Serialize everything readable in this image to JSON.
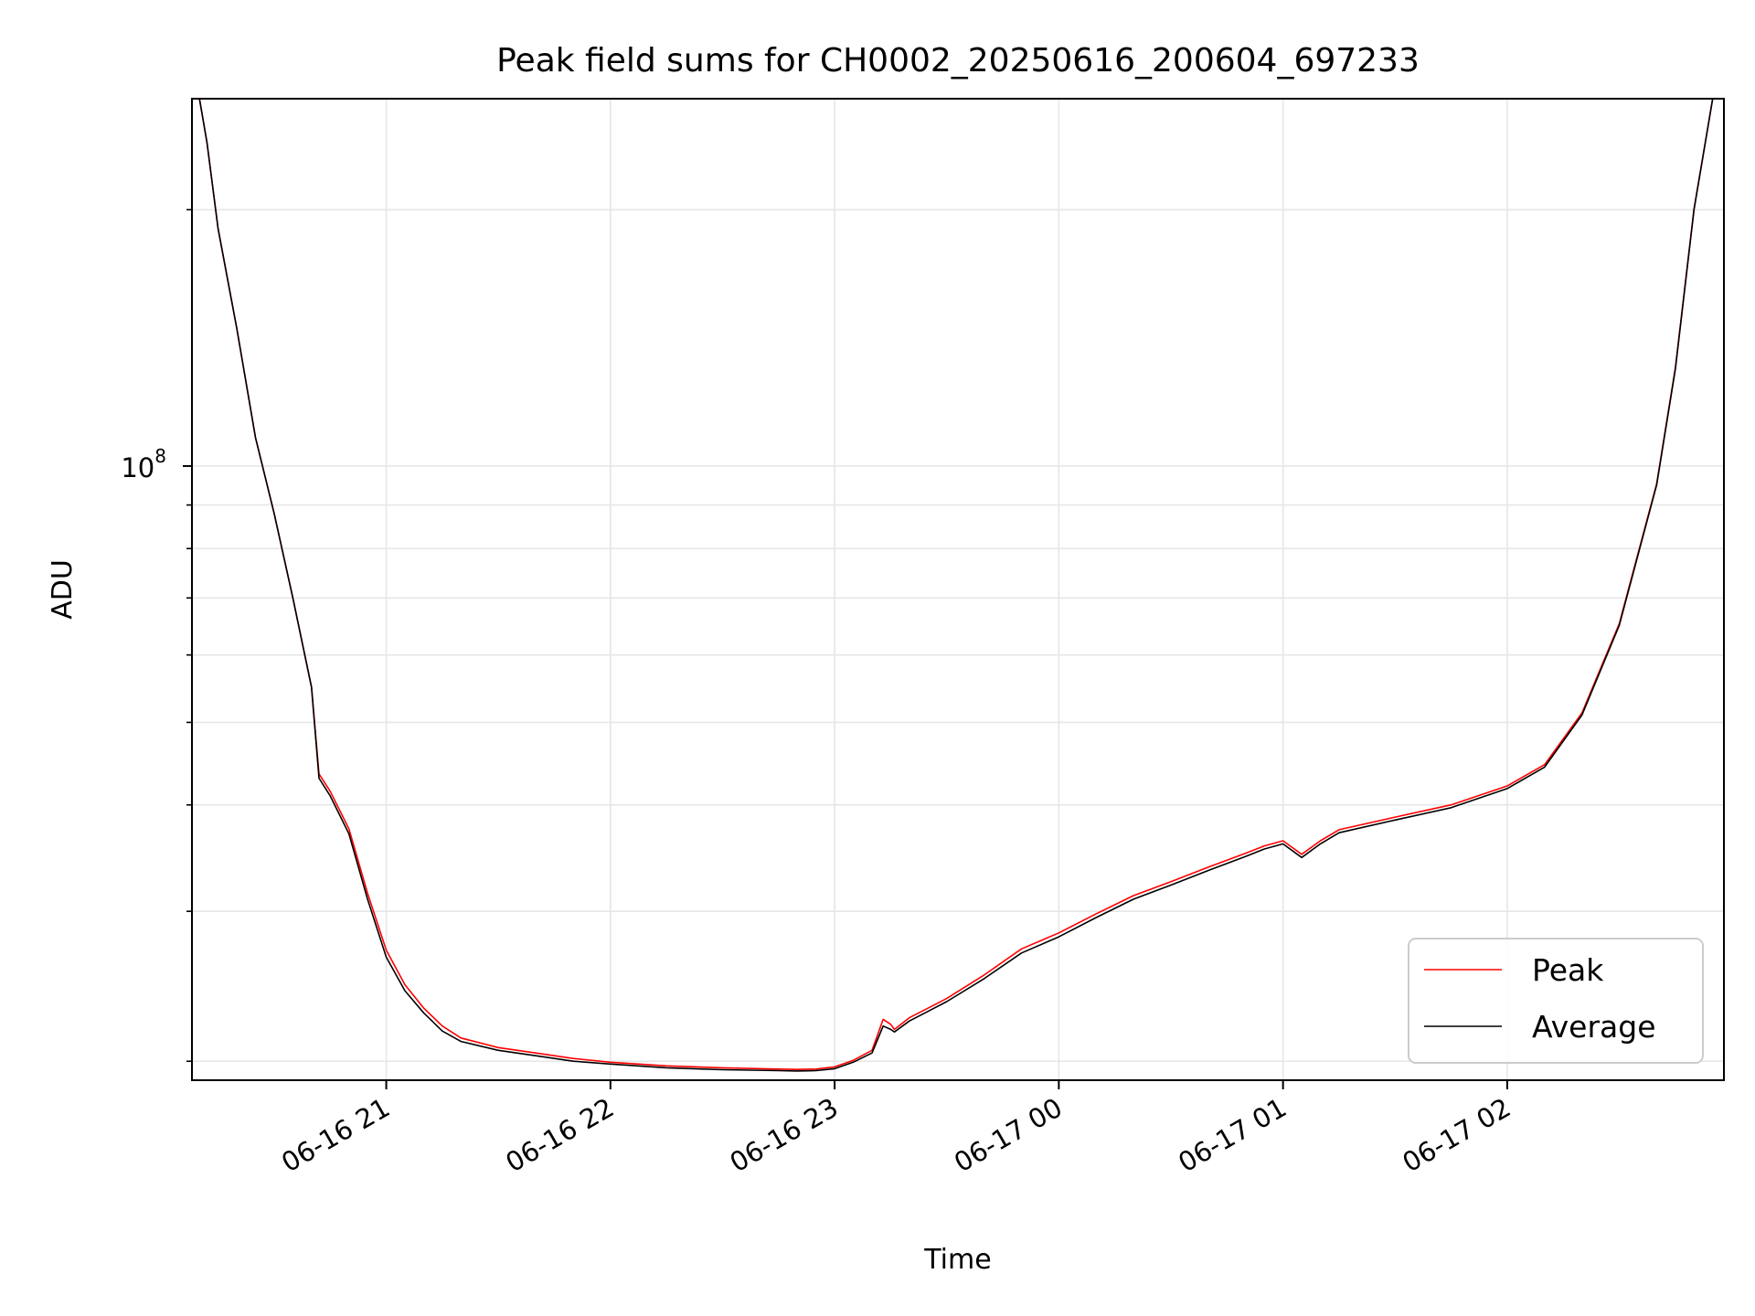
{
  "chart_data": {
    "type": "line",
    "title": "Peak field sums for CH0002_20250616_200604_697233",
    "xlabel": "Time",
    "ylabel": "ADU",
    "y_scale": "log",
    "ylim": [
      19000000.0,
      270000000.0
    ],
    "xlim": [
      "2025-06-16 20:08",
      "2025-06-17 02:58"
    ],
    "grid": true,
    "x_ticks": [
      {
        "t": "2025-06-16 21:00",
        "label": "06-16 21"
      },
      {
        "t": "2025-06-16 22:00",
        "label": "06-16 22"
      },
      {
        "t": "2025-06-16 23:00",
        "label": "06-16 23"
      },
      {
        "t": "2025-06-17 00:00",
        "label": "06-17 00"
      },
      {
        "t": "2025-06-17 01:00",
        "label": "06-17 01"
      },
      {
        "t": "2025-06-17 02:00",
        "label": "06-17 02"
      }
    ],
    "y_major_ticks": [
      {
        "value": 100000000,
        "base": "10",
        "exp": "8"
      }
    ],
    "y_minor_ticks": [
      20000000,
      30000000,
      40000000,
      50000000,
      60000000,
      70000000,
      80000000,
      90000000,
      200000000
    ],
    "legend": {
      "position": "lower-right",
      "entries": [
        {
          "name": "Peak",
          "color": "#ff0000"
        },
        {
          "name": "Average",
          "color": "#000000"
        }
      ]
    },
    "series": [
      {
        "name": "Average",
        "color": "#000000",
        "x": [
          "2025-06-16 20:10",
          "2025-06-16 20:12",
          "2025-06-16 20:15",
          "2025-06-16 20:20",
          "2025-06-16 20:25",
          "2025-06-16 20:30",
          "2025-06-16 20:35",
          "2025-06-16 20:40",
          "2025-06-16 20:42",
          "2025-06-16 20:45",
          "2025-06-16 20:50",
          "2025-06-16 20:55",
          "2025-06-16 21:00",
          "2025-06-16 21:05",
          "2025-06-16 21:10",
          "2025-06-16 21:15",
          "2025-06-16 21:20",
          "2025-06-16 21:30",
          "2025-06-16 21:40",
          "2025-06-16 21:50",
          "2025-06-16 22:00",
          "2025-06-16 22:15",
          "2025-06-16 22:30",
          "2025-06-16 22:45",
          "2025-06-16 22:50",
          "2025-06-16 22:55",
          "2025-06-16 23:00",
          "2025-06-16 23:05",
          "2025-06-16 23:10",
          "2025-06-16 23:13",
          "2025-06-16 23:15",
          "2025-06-16 23:16",
          "2025-06-16 23:20",
          "2025-06-16 23:30",
          "2025-06-16 23:40",
          "2025-06-16 23:50",
          "2025-06-17 00:00",
          "2025-06-17 00:10",
          "2025-06-17 00:20",
          "2025-06-17 00:30",
          "2025-06-17 00:40",
          "2025-06-17 00:50",
          "2025-06-17 00:55",
          "2025-06-17 01:00",
          "2025-06-17 01:05",
          "2025-06-17 01:10",
          "2025-06-17 01:15",
          "2025-06-17 01:30",
          "2025-06-17 01:45",
          "2025-06-17 02:00",
          "2025-06-17 02:10",
          "2025-06-17 02:20",
          "2025-06-17 02:30",
          "2025-06-17 02:40",
          "2025-06-17 02:45",
          "2025-06-17 02:50",
          "2025-06-17 02:55"
        ],
        "values": [
          270000000,
          240000000,
          190000000,
          145000000,
          108000000,
          88000000,
          70000000,
          55000000,
          43000000,
          41000000,
          37000000,
          31000000,
          26500000,
          24200000,
          22800000,
          21700000,
          21100000,
          20600000,
          20300000,
          20000000,
          19850000,
          19650000,
          19550000,
          19500000,
          19480000,
          19500000,
          19600000,
          19950000,
          20450000,
          22000000,
          21800000,
          21650000,
          22300000,
          23500000,
          25000000,
          26800000,
          28000000,
          29500000,
          31000000,
          32200000,
          33500000,
          34800000,
          35500000,
          36000000,
          34700000,
          36000000,
          37100000,
          38400000,
          39700000,
          41800000,
          44300000,
          51000000,
          65000000,
          95000000,
          130000000,
          200000000,
          270000000
        ]
      },
      {
        "name": "Peak",
        "color": "#ff0000",
        "x": [
          "2025-06-16 20:10",
          "2025-06-16 20:12",
          "2025-06-16 20:15",
          "2025-06-16 20:20",
          "2025-06-16 20:25",
          "2025-06-16 20:30",
          "2025-06-16 20:35",
          "2025-06-16 20:40",
          "2025-06-16 20:42",
          "2025-06-16 20:45",
          "2025-06-16 20:50",
          "2025-06-16 20:55",
          "2025-06-16 21:00",
          "2025-06-16 21:05",
          "2025-06-16 21:10",
          "2025-06-16 21:15",
          "2025-06-16 21:20",
          "2025-06-16 21:30",
          "2025-06-16 21:40",
          "2025-06-16 21:50",
          "2025-06-16 22:00",
          "2025-06-16 22:15",
          "2025-06-16 22:30",
          "2025-06-16 22:45",
          "2025-06-16 22:50",
          "2025-06-16 22:55",
          "2025-06-16 23:00",
          "2025-06-16 23:05",
          "2025-06-16 23:10",
          "2025-06-16 23:13",
          "2025-06-16 23:15",
          "2025-06-16 23:16",
          "2025-06-16 23:20",
          "2025-06-16 23:30",
          "2025-06-16 23:40",
          "2025-06-16 23:50",
          "2025-06-17 00:00",
          "2025-06-17 00:10",
          "2025-06-17 00:20",
          "2025-06-17 00:30",
          "2025-06-17 00:40",
          "2025-06-17 00:50",
          "2025-06-17 00:55",
          "2025-06-17 01:00",
          "2025-06-17 01:05",
          "2025-06-17 01:10",
          "2025-06-17 01:15",
          "2025-06-17 01:30",
          "2025-06-17 01:45",
          "2025-06-17 02:00",
          "2025-06-17 02:10",
          "2025-06-17 02:20",
          "2025-06-17 02:30",
          "2025-06-17 02:40",
          "2025-06-17 02:45",
          "2025-06-17 02:50",
          "2025-06-17 02:55"
        ],
        "values": [
          270000000,
          240000000,
          190000000,
          145000000,
          108000000,
          88000000,
          70000000,
          55000000,
          43500000,
          41500000,
          37500000,
          31500000,
          27000000,
          24600000,
          23100000,
          22000000,
          21300000,
          20750000,
          20450000,
          20150000,
          19950000,
          19750000,
          19650000,
          19580000,
          19560000,
          19580000,
          19700000,
          20050000,
          20600000,
          22400000,
          22100000,
          21800000,
          22500000,
          23700000,
          25250000,
          27100000,
          28300000,
          29800000,
          31300000,
          32500000,
          33800000,
          35100000,
          35800000,
          36300000,
          35000000,
          36300000,
          37400000,
          38700000,
          40000000,
          42100000,
          44600000,
          51300000,
          65300000,
          95300000,
          130500000,
          200500000,
          270000000
        ]
      }
    ]
  }
}
